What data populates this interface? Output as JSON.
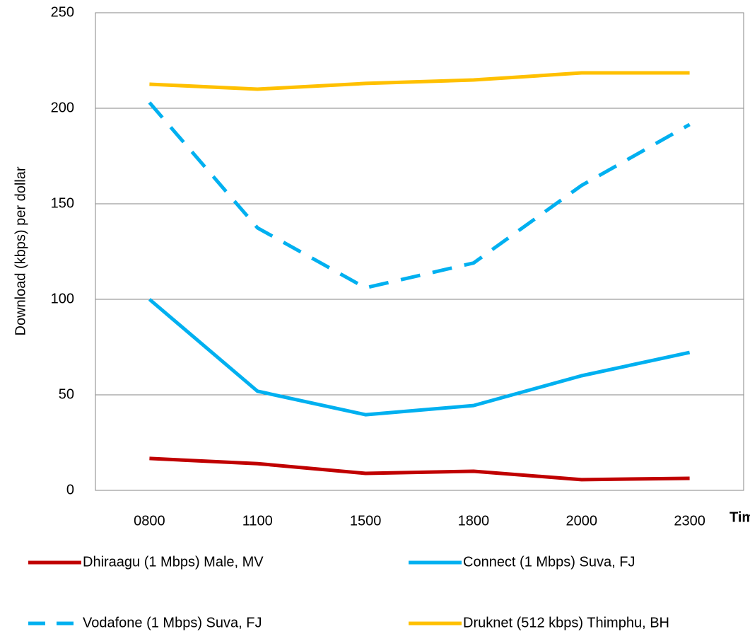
{
  "chart_data": {
    "type": "line",
    "y_label": "Download (kbps) per dollar",
    "x_label": "Time",
    "categories": [
      "0800",
      "1100",
      "1500",
      "1800",
      "2000",
      "2300"
    ],
    "series": [
      {
        "name": "Dhiraagu (1 Mbps) Male, MV",
        "color": "#c00000",
        "style": "solid",
        "values": [
          16.7,
          14,
          8.9,
          10,
          5.6,
          6.3
        ]
      },
      {
        "name": "Connect (1 Mbps) Suva, FJ",
        "color": "#00b0f0",
        "style": "solid",
        "values": [
          100,
          51.9,
          39.6,
          44.4,
          60,
          72.2
        ]
      },
      {
        "name": "Vodafone (1 Mbps) Suva, FJ",
        "color": "#00b0f0",
        "style": "dashed",
        "values": [
          203,
          137.4,
          106,
          119,
          159.6,
          191.5
        ]
      },
      {
        "name": "Druknet (512 kbps) Thimphu, BH",
        "color": "#ffc000",
        "style": "solid",
        "values": [
          212.6,
          210,
          213,
          214.8,
          218.5,
          218.5
        ]
      }
    ],
    "ylim": [
      0,
      250
    ],
    "yticks": [
      0,
      50,
      100,
      150,
      200,
      250
    ],
    "grid": true,
    "legend": "bottom"
  }
}
